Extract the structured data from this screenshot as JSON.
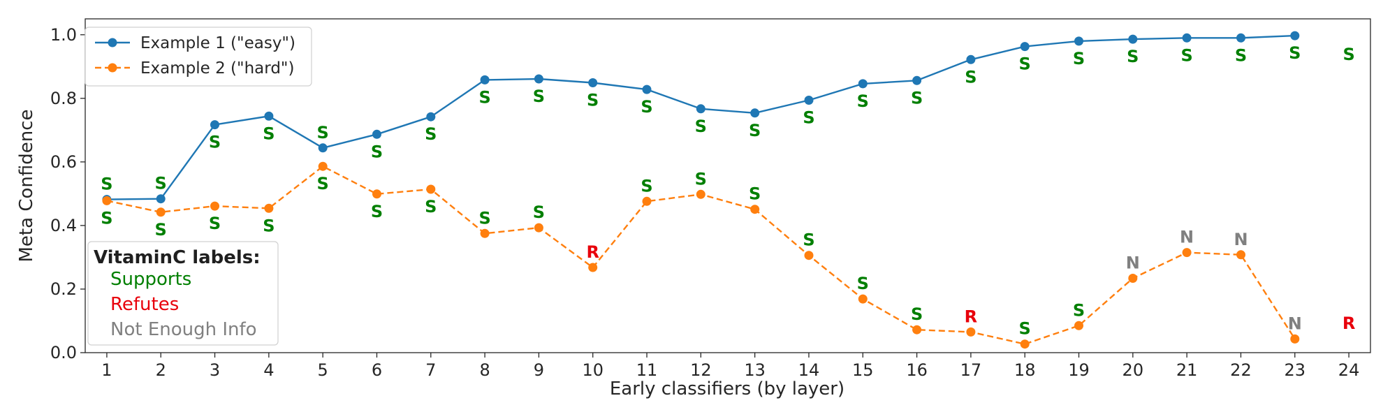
{
  "chart_data": {
    "type": "line",
    "title": "",
    "xlabel": "Early classifiers (by layer)",
    "ylabel": "Meta Confidence",
    "x": [
      1,
      2,
      3,
      4,
      5,
      6,
      7,
      8,
      9,
      10,
      11,
      12,
      13,
      14,
      15,
      16,
      17,
      18,
      19,
      20,
      21,
      22,
      23,
      24
    ],
    "xlim": [
      0.6,
      24.4
    ],
    "ylim": [
      0.0,
      1.05
    ],
    "yticks": [
      0.0,
      0.2,
      0.4,
      0.6,
      0.8,
      1.0
    ],
    "grid": false,
    "legend_position": "top-left",
    "series": [
      {
        "name": "Example 1 (\"easy\")",
        "color": "#1f77b4",
        "line_style": "solid",
        "marker": "circle",
        "values": [
          0.482,
          0.484,
          0.717,
          0.744,
          0.644,
          0.687,
          0.742,
          0.858,
          0.861,
          0.849,
          0.828,
          0.767,
          0.754,
          0.794,
          0.846,
          0.856,
          0.922,
          0.963,
          0.98,
          0.986,
          0.99,
          0.99,
          0.997,
          null
        ],
        "labels": [
          "S",
          "S",
          "S",
          "S",
          "S",
          "S",
          "S",
          "S",
          "S",
          "S",
          "S",
          "S",
          "S",
          "S",
          "S",
          "S",
          "S",
          "S",
          "S",
          "S",
          "S",
          "S",
          "S",
          "S"
        ],
        "label_positions": [
          "above",
          "above",
          "below",
          "below",
          "above",
          "below",
          "below",
          "below",
          "below",
          "below",
          "below",
          "below",
          "below",
          "below",
          "below",
          "below",
          "below",
          "below",
          "below",
          "below",
          "below",
          "below",
          "below",
          "below"
        ],
        "final_label_y": 0.94
      },
      {
        "name": "Example 2 (\"hard\")",
        "color": "#ff7f0e",
        "line_style": "dashed",
        "marker": "circle",
        "values": [
          0.478,
          0.442,
          0.461,
          0.454,
          0.586,
          0.499,
          0.514,
          0.375,
          0.393,
          0.268,
          0.476,
          0.498,
          0.451,
          0.306,
          0.169,
          0.072,
          0.065,
          0.027,
          0.085,
          0.234,
          0.315,
          0.308,
          0.043,
          null
        ],
        "labels": [
          "S",
          "S",
          "S",
          "S",
          "S",
          "S",
          "S",
          "S",
          "S",
          "R",
          "S",
          "S",
          "S",
          "S",
          "S",
          "S",
          "R",
          "S",
          "S",
          "N",
          "N",
          "N",
          "N",
          "R"
        ],
        "label_positions": [
          "below",
          "below",
          "below",
          "below",
          "below",
          "below",
          "below",
          "above",
          "above",
          "above",
          "above",
          "above",
          "above",
          "above",
          "above",
          "above",
          "above",
          "above",
          "above",
          "above",
          "above",
          "above",
          "above",
          "above"
        ],
        "final_label_y": 0.095
      }
    ],
    "label_box": {
      "title": "VitaminC labels:",
      "items": [
        {
          "code": "S",
          "text": "Supports",
          "color": "#007f00"
        },
        {
          "code": "R",
          "text": "Refutes",
          "color": "#e8000b"
        },
        {
          "code": "N",
          "text": "Not Enough Info",
          "color": "#808080"
        }
      ]
    }
  }
}
